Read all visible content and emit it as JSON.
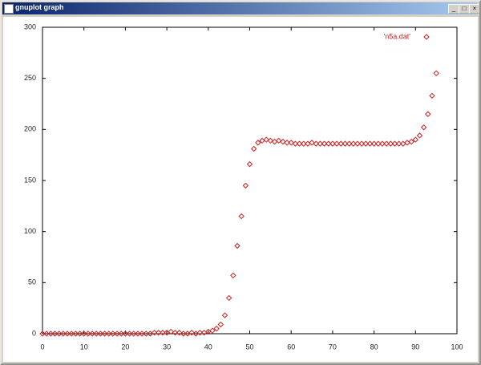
{
  "window": {
    "title": "gnuplot graph"
  },
  "chart_data": {
    "type": "scatter",
    "x": [
      0,
      1,
      2,
      3,
      4,
      5,
      6,
      7,
      8,
      9,
      10,
      11,
      12,
      13,
      14,
      15,
      16,
      17,
      18,
      19,
      20,
      21,
      22,
      23,
      24,
      25,
      26,
      27,
      28,
      29,
      30,
      31,
      32,
      33,
      34,
      35,
      36,
      37,
      38,
      39,
      40,
      41,
      42,
      43,
      44,
      45,
      46,
      47,
      48,
      49,
      50,
      51,
      52,
      53,
      54,
      55,
      56,
      57,
      58,
      59,
      60,
      61,
      62,
      63,
      64,
      65,
      66,
      67,
      68,
      69,
      70,
      71,
      72,
      73,
      74,
      75,
      76,
      77,
      78,
      79,
      80,
      81,
      82,
      83,
      84,
      85,
      86,
      87,
      88,
      89,
      90,
      91,
      92,
      93,
      94,
      95
    ],
    "series": [
      {
        "name": "'n5a.dat'",
        "color": "#d02020",
        "values": [
          0,
          0,
          0,
          0,
          0,
          0,
          0,
          0,
          0,
          0,
          0,
          0,
          0,
          0,
          0,
          0,
          0,
          0,
          0,
          0,
          0,
          0,
          0,
          0,
          0,
          0,
          0,
          1,
          1,
          1,
          1,
          2,
          1,
          1,
          0,
          0,
          1,
          0,
          1,
          1,
          2,
          3,
          5,
          9,
          18,
          35,
          57,
          86,
          115,
          145,
          166,
          181,
          187,
          189,
          190,
          189,
          188,
          189,
          188,
          187,
          187,
          186,
          186,
          186,
          186,
          187,
          186,
          186,
          186,
          186,
          186,
          186,
          186,
          186,
          186,
          186,
          186,
          186,
          186,
          186,
          186,
          186,
          186,
          186,
          186,
          186,
          186,
          186,
          187,
          188,
          190,
          194,
          202,
          215,
          233,
          255
        ]
      }
    ],
    "xlim": [
      0,
      100
    ],
    "xticks": [
      0,
      10,
      20,
      30,
      40,
      50,
      60,
      70,
      80,
      90,
      100
    ],
    "ylim": [
      0,
      300
    ],
    "yticks": [
      0,
      50,
      100,
      150,
      200,
      250,
      300
    ]
  }
}
